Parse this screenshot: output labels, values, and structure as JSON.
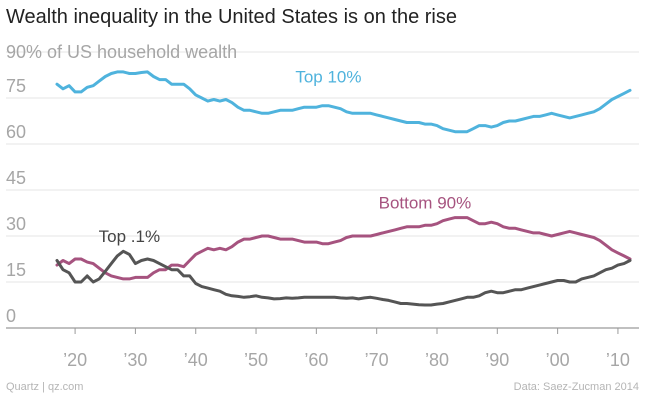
{
  "title": "Wealth inequality in the United States is on the rise",
  "footer": {
    "source_left": "Quartz | qz.com",
    "source_right": "Data: Saez-Zucman 2014"
  },
  "chart_data": {
    "type": "line",
    "title": "Wealth inequality in the United States is on the rise",
    "ylabel": "90% of US household wealth",
    "xlabel": "",
    "ylim": [
      0,
      90
    ],
    "xlim": [
      1913,
      2012
    ],
    "grid": true,
    "yticks": [
      {
        "value": 0,
        "label": "0"
      },
      {
        "value": 15,
        "label": "15"
      },
      {
        "value": 30,
        "label": "30"
      },
      {
        "value": 45,
        "label": "45"
      },
      {
        "value": 60,
        "label": "60"
      },
      {
        "value": 75,
        "label": "75"
      },
      {
        "value": 90,
        "label": "90"
      }
    ],
    "xticks": [
      {
        "value": 1920,
        "label": "’20"
      },
      {
        "value": 1930,
        "label": "’30"
      },
      {
        "value": 1940,
        "label": "’40"
      },
      {
        "value": 1950,
        "label": "’50"
      },
      {
        "value": 1960,
        "label": "’60"
      },
      {
        "value": 1970,
        "label": "’70"
      },
      {
        "value": 1980,
        "label": "’80"
      },
      {
        "value": 1990,
        "label": "’90"
      },
      {
        "value": 2000,
        "label": "’00"
      },
      {
        "value": 2010,
        "label": "’10"
      }
    ],
    "series": [
      {
        "name": "Top 10%",
        "color": "#4fb3dd",
        "x": [
          1917,
          1918,
          1919,
          1920,
          1921,
          1922,
          1923,
          1924,
          1925,
          1926,
          1927,
          1928,
          1929,
          1930,
          1931,
          1932,
          1933,
          1934,
          1935,
          1936,
          1937,
          1938,
          1939,
          1940,
          1941,
          1942,
          1943,
          1944,
          1945,
          1946,
          1947,
          1948,
          1949,
          1950,
          1951,
          1952,
          1953,
          1954,
          1955,
          1956,
          1957,
          1958,
          1959,
          1960,
          1961,
          1962,
          1963,
          1964,
          1965,
          1966,
          1967,
          1968,
          1969,
          1970,
          1971,
          1972,
          1973,
          1974,
          1975,
          1976,
          1977,
          1978,
          1979,
          1980,
          1981,
          1982,
          1983,
          1984,
          1985,
          1986,
          1987,
          1988,
          1989,
          1990,
          1991,
          1992,
          1993,
          1994,
          1995,
          1996,
          1997,
          1998,
          1999,
          2000,
          2001,
          2002,
          2003,
          2004,
          2005,
          2006,
          2007,
          2008,
          2009,
          2010,
          2011,
          2012
        ],
        "values": [
          79.5,
          78,
          79,
          77,
          77,
          78.5,
          79,
          80.5,
          82,
          83,
          83.5,
          83.5,
          83,
          83,
          83.3,
          83.5,
          82,
          81,
          81,
          79.5,
          79.5,
          79.5,
          78,
          76,
          75,
          74,
          74.5,
          74,
          74.5,
          73.5,
          72,
          71,
          71,
          70.5,
          70,
          70,
          70.5,
          71,
          71,
          71,
          71.5,
          72,
          72,
          72,
          72.5,
          72.5,
          72,
          71.5,
          70.5,
          70,
          70,
          70,
          70,
          69.5,
          69,
          68.5,
          68,
          67.5,
          67,
          67,
          67,
          66.5,
          66.5,
          66,
          65,
          64.5,
          64,
          64,
          64,
          65,
          66,
          66,
          65.5,
          66,
          67,
          67.5,
          67.5,
          68,
          68.5,
          69,
          69,
          69.5,
          70,
          69.5,
          69,
          68.5,
          69,
          69.5,
          70,
          70.5,
          71.5,
          73,
          74.5,
          75.5,
          76.5,
          77.5
        ]
      },
      {
        "name": "Bottom 90%",
        "color": "#a6537f",
        "x": [
          1917,
          1918,
          1919,
          1920,
          1921,
          1922,
          1923,
          1924,
          1925,
          1926,
          1927,
          1928,
          1929,
          1930,
          1931,
          1932,
          1933,
          1934,
          1935,
          1936,
          1937,
          1938,
          1939,
          1940,
          1941,
          1942,
          1943,
          1944,
          1945,
          1946,
          1947,
          1948,
          1949,
          1950,
          1951,
          1952,
          1953,
          1954,
          1955,
          1956,
          1957,
          1958,
          1959,
          1960,
          1961,
          1962,
          1963,
          1964,
          1965,
          1966,
          1967,
          1968,
          1969,
          1970,
          1971,
          1972,
          1973,
          1974,
          1975,
          1976,
          1977,
          1978,
          1979,
          1980,
          1981,
          1982,
          1983,
          1984,
          1985,
          1986,
          1987,
          1988,
          1989,
          1990,
          1991,
          1992,
          1993,
          1994,
          1995,
          1996,
          1997,
          1998,
          1999,
          2000,
          2001,
          2002,
          2003,
          2004,
          2005,
          2006,
          2007,
          2008,
          2009,
          2010,
          2011,
          2012
        ],
        "values": [
          20.5,
          22,
          21,
          22.5,
          22.5,
          21.5,
          21,
          19.5,
          18,
          17,
          16.5,
          16,
          16,
          16.5,
          16.5,
          16.5,
          18,
          19,
          19,
          20.5,
          20.5,
          20,
          22,
          24,
          25,
          26,
          25.5,
          26,
          25.5,
          26.5,
          28,
          29,
          29,
          29.5,
          30,
          30,
          29.5,
          29,
          29,
          29,
          28.5,
          28,
          28,
          28,
          27.5,
          27.5,
          28,
          28.5,
          29.5,
          30,
          30,
          30,
          30,
          30.5,
          31,
          31.5,
          32,
          32.5,
          33,
          33,
          33,
          33.5,
          33.5,
          34,
          35,
          35.5,
          36,
          36,
          36,
          35,
          34,
          34,
          34.5,
          34,
          33,
          32.5,
          32.5,
          32,
          31.5,
          31,
          31,
          30.5,
          30,
          30.5,
          31,
          31.5,
          31,
          30.5,
          30,
          29.5,
          28.5,
          27,
          25.5,
          24.5,
          23.5,
          22.5
        ]
      },
      {
        "name": "Top .1%",
        "color": "#555555",
        "x": [
          1917,
          1918,
          1919,
          1920,
          1921,
          1922,
          1923,
          1924,
          1925,
          1926,
          1927,
          1928,
          1929,
          1930,
          1931,
          1932,
          1933,
          1934,
          1935,
          1936,
          1937,
          1938,
          1939,
          1940,
          1941,
          1942,
          1943,
          1944,
          1945,
          1946,
          1947,
          1948,
          1949,
          1950,
          1951,
          1952,
          1953,
          1954,
          1955,
          1956,
          1957,
          1958,
          1959,
          1960,
          1961,
          1962,
          1963,
          1964,
          1965,
          1966,
          1967,
          1968,
          1969,
          1970,
          1971,
          1972,
          1973,
          1974,
          1975,
          1976,
          1977,
          1978,
          1979,
          1980,
          1981,
          1982,
          1983,
          1984,
          1985,
          1986,
          1987,
          1988,
          1989,
          1990,
          1991,
          1992,
          1993,
          1994,
          1995,
          1996,
          1997,
          1998,
          1999,
          2000,
          2001,
          2002,
          2003,
          2004,
          2005,
          2006,
          2007,
          2008,
          2009,
          2010,
          2011,
          2012
        ],
        "values": [
          22,
          19,
          18,
          15,
          15,
          17,
          15,
          16,
          18.5,
          21,
          23.5,
          25,
          24,
          21,
          22,
          22.5,
          22,
          21,
          20,
          19,
          19,
          17,
          17,
          14.5,
          13.5,
          13,
          12.5,
          12,
          11,
          10.5,
          10.3,
          10,
          10.2,
          10.5,
          10,
          9.8,
          9.5,
          9.6,
          9.8,
          9.7,
          9.8,
          10,
          10,
          10,
          10,
          10,
          10,
          9.8,
          9.7,
          9.8,
          9.5,
          9.8,
          10,
          9.7,
          9.3,
          9,
          8.5,
          8,
          8,
          7.8,
          7.6,
          7.5,
          7.5,
          7.8,
          8,
          8.5,
          9,
          9.5,
          10,
          10,
          10.5,
          11.5,
          12,
          11.5,
          11.5,
          12,
          12.5,
          12.5,
          13,
          13.5,
          14,
          14.5,
          15,
          15.5,
          15.5,
          15,
          15,
          16,
          16.5,
          17,
          18,
          19,
          19.5,
          20.5,
          21,
          22
        ]
      }
    ],
    "annotations": [
      {
        "text": "Top 10%",
        "series": "Top 10%",
        "x": 1962,
        "y": 80,
        "color": "#4fb3dd"
      },
      {
        "text": "Bottom 90%",
        "series": "Bottom 90%",
        "x": 1978,
        "y": 39,
        "color": "#a6537f"
      },
      {
        "text": "Top .1%",
        "series": "Top .1%",
        "x": 1929,
        "y": 28,
        "color": "#444444"
      }
    ]
  }
}
